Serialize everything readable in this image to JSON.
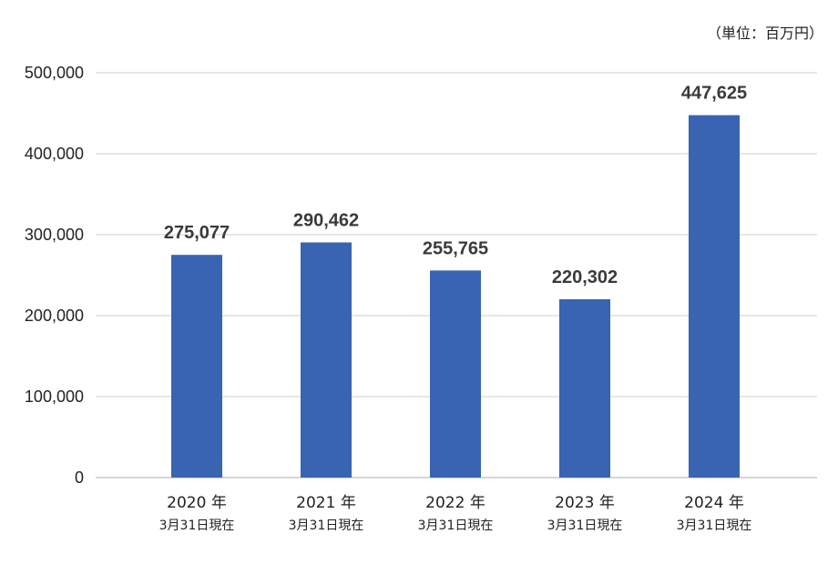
{
  "chart_data": {
    "type": "bar",
    "unit_label": "（単位：百万円）",
    "categories": [
      {
        "year": "2020 年",
        "date": "3月31日現在"
      },
      {
        "year": "2021 年",
        "date": "3月31日現在"
      },
      {
        "year": "2022 年",
        "date": "3月31日現在"
      },
      {
        "year": "2023 年",
        "date": "3月31日現在"
      },
      {
        "year": "2024 年",
        "date": "3月31日現在"
      }
    ],
    "values": [
      275077,
      290462,
      255765,
      220302,
      447625
    ],
    "value_labels": [
      "275,077",
      "290,462",
      "255,765",
      "220,302",
      "447,625"
    ],
    "yticks": [
      0,
      100000,
      200000,
      300000,
      400000,
      500000
    ],
    "ytick_labels": [
      "0",
      "100,000",
      "200,000",
      "300,000",
      "400,000",
      "500,000"
    ],
    "ylim": [
      0,
      500000
    ],
    "grid": true,
    "bar_color": "#3864B2"
  }
}
